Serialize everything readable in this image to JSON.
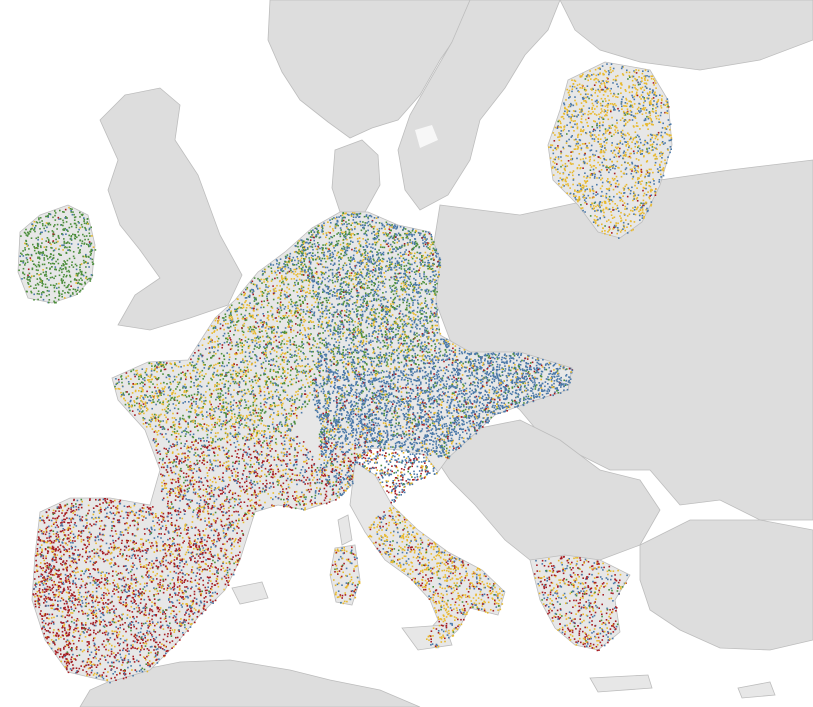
{
  "map": {
    "colors": {
      "sea": "#ffffff",
      "land": "#dddddd",
      "focus_land": "#e7e7e7",
      "border": "#bdbdbd"
    },
    "dot_colors": {
      "blue": "#4a78a8",
      "green": "#4c8e3c",
      "yellow": "#e8b92e",
      "red": "#a61c22"
    },
    "regions": [
      {
        "name": "ireland",
        "mix": {
          "green": 0.78,
          "blue": 0.14,
          "yellow": 0.06,
          "red": 0.02
        },
        "density": 0.9
      },
      {
        "name": "france-north",
        "mix": {
          "green": 0.32,
          "yellow": 0.38,
          "blue": 0.22,
          "red": 0.08
        },
        "density": 1.0
      },
      {
        "name": "france-south",
        "mix": {
          "red": 0.42,
          "yellow": 0.26,
          "blue": 0.24,
          "green": 0.08
        },
        "density": 0.9
      },
      {
        "name": "iberia",
        "mix": {
          "red": 0.48,
          "blue": 0.24,
          "yellow": 0.24,
          "green": 0.04
        },
        "density": 0.9
      },
      {
        "name": "portugal",
        "mix": {
          "red": 0.62,
          "yellow": 0.2,
          "blue": 0.16,
          "green": 0.02
        },
        "density": 1.3
      },
      {
        "name": "germany",
        "mix": {
          "blue": 0.48,
          "green": 0.32,
          "yellow": 0.17,
          "red": 0.03
        },
        "density": 1.4
      },
      {
        "name": "austria",
        "mix": {
          "blue": 0.76,
          "yellow": 0.1,
          "green": 0.08,
          "red": 0.06
        },
        "density": 1.6
      },
      {
        "name": "italy-north",
        "mix": {
          "blue": 0.5,
          "red": 0.22,
          "yellow": 0.22,
          "green": 0.06
        },
        "density": 1.4
      },
      {
        "name": "italy-south",
        "mix": {
          "yellow": 0.58,
          "blue": 0.18,
          "red": 0.2,
          "green": 0.04
        },
        "density": 1.0
      },
      {
        "name": "greece",
        "mix": {
          "red": 0.44,
          "yellow": 0.3,
          "blue": 0.22,
          "green": 0.04
        },
        "density": 0.8
      },
      {
        "name": "latvia",
        "mix": {
          "yellow": 0.64,
          "blue": 0.3,
          "red": 0.04,
          "green": 0.02
        },
        "density": 0.9
      },
      {
        "name": "islands",
        "mix": {
          "yellow": 0.45,
          "blue": 0.3,
          "red": 0.2,
          "green": 0.05
        },
        "density": 0.8
      }
    ]
  }
}
